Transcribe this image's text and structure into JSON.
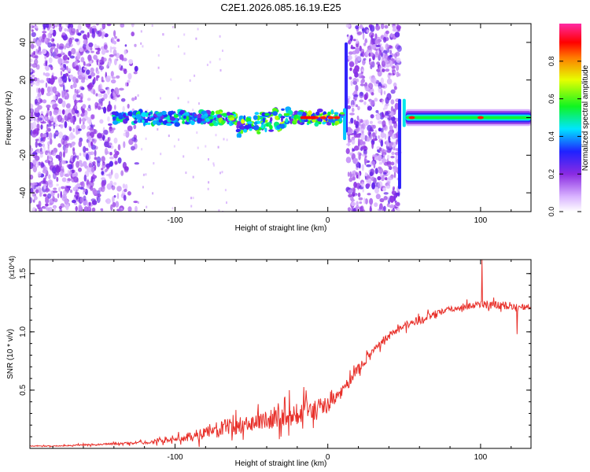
{
  "title": "C2E1.2026.085.16.19.E25",
  "chart_data": [
    {
      "type": "heatmap",
      "title": "C2E1.2026.085.16.19.E25",
      "xlabel": "Height of straight line (km)",
      "ylabel": "Frequency (Hz)",
      "xlim": [
        -195,
        133
      ],
      "ylim": [
        -50,
        50
      ],
      "xticks": [
        -100,
        0,
        100
      ],
      "xtick_labels": [
        "-100",
        "0",
        "100"
      ],
      "yticks": [
        -40,
        -20,
        0,
        20,
        40
      ],
      "ytick_labels": [
        "-40",
        "-20",
        "0",
        "20",
        "40"
      ],
      "colorbar": {
        "label": "Normalized spectral amplitude",
        "range": [
          0,
          1
        ],
        "ticks": [
          0,
          0.2,
          0.4,
          0.6,
          0.8
        ],
        "tick_labels": [
          "0.0",
          "0.2",
          "0.4",
          "0.6",
          "0.8"
        ],
        "colormap": "rainbow (white-purple-blue-cyan-green-yellow-red-magenta)"
      },
      "features": {
        "broadband_noise_x_ranges": [
          [
            -195,
            -125
          ],
          [
            13,
            47
          ]
        ],
        "signal_band": {
          "x_range": [
            -140,
            133
          ],
          "center_freq": 0,
          "half_width_hz": 4
        },
        "strong_peak_x": [
          -15,
          -8,
          -3,
          2,
          6,
          55,
          100
        ]
      }
    },
    {
      "type": "line",
      "xlabel": "Height of straight line (km)",
      "ylabel": "SNR (10 * v/v)",
      "y_multiplier": "(x10^4)",
      "xlim": [
        -195,
        133
      ],
      "ylim": [
        0,
        1.62
      ],
      "xticks": [
        -100,
        0,
        100
      ],
      "xtick_labels": [
        "-100",
        "0",
        "100"
      ],
      "yticks": [
        0.5,
        1.0,
        1.5
      ],
      "ytick_labels": [
        "0.5",
        "1.0",
        "1.5"
      ],
      "series": [
        {
          "name": "SNR",
          "color": "#e8302a",
          "x": [
            -195,
            -180,
            -160,
            -140,
            -120,
            -100,
            -90,
            -80,
            -70,
            -60,
            -50,
            -40,
            -30,
            -20,
            -10,
            0,
            10,
            20,
            30,
            40,
            50,
            60,
            70,
            80,
            90,
            100,
            110,
            120,
            133
          ],
          "y": [
            0.02,
            0.02,
            0.03,
            0.04,
            0.05,
            0.08,
            0.1,
            0.13,
            0.17,
            0.2,
            0.22,
            0.25,
            0.27,
            0.3,
            0.33,
            0.37,
            0.5,
            0.68,
            0.85,
            0.97,
            1.05,
            1.1,
            1.15,
            1.19,
            1.22,
            1.24,
            1.23,
            1.22,
            1.21
          ],
          "noise_amplitude": [
            0.005,
            0.005,
            0.01,
            0.01,
            0.02,
            0.03,
            0.06,
            0.08,
            0.1,
            0.1,
            0.1,
            0.12,
            0.13,
            0.14,
            0.14,
            0.1,
            0.08,
            0.06,
            0.05,
            0.05,
            0.05,
            0.05,
            0.04,
            0.04,
            0.04,
            0.05,
            0.05,
            0.04,
            0.03
          ],
          "annotations": [
            {
              "x": 101,
              "spike_high": 1.62,
              "spike_low": 0.82
            },
            {
              "x": 124,
              "spike_high": 1.38,
              "spike_low": 0.98
            }
          ]
        }
      ]
    }
  ]
}
